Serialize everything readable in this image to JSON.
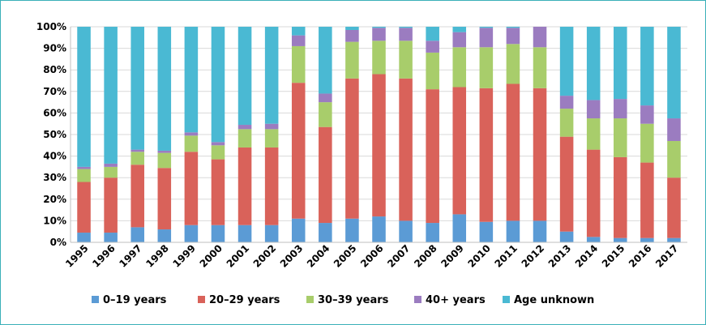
{
  "chart_data": {
    "type": "bar",
    "stacked": true,
    "percent": true,
    "title": "",
    "xlabel": "",
    "ylabel": "",
    "ylim": [
      0,
      100
    ],
    "yticks": [
      "0%",
      "10%",
      "20%",
      "30%",
      "40%",
      "50%",
      "60%",
      "70%",
      "80%",
      "90%",
      "100%"
    ],
    "grid": true,
    "legend_position": "bottom",
    "categories": [
      "1995",
      "1996",
      "1997",
      "1998",
      "1999",
      "2000",
      "2001",
      "2002",
      "2003",
      "2004",
      "2005",
      "2006",
      "2007",
      "2008",
      "2009",
      "2010",
      "2011",
      "2012",
      "2013",
      "2014",
      "2015",
      "2016",
      "2017"
    ],
    "series": [
      {
        "name": "0–19 years",
        "color": "#5b9bd5",
        "values": [
          4.5,
          4.5,
          7,
          6,
          8,
          8,
          8,
          8,
          11,
          9,
          11,
          12,
          10,
          9,
          13,
          9.5,
          10,
          10,
          5,
          2.5,
          2,
          2,
          2
        ]
      },
      {
        "name": "20–29 years",
        "color": "#d9625a",
        "values": [
          23.5,
          25.5,
          29,
          28.5,
          34,
          30.5,
          36,
          36,
          63,
          44.5,
          65,
          66,
          66,
          62,
          59,
          62,
          63.5,
          61.5,
          44,
          40.5,
          37.5,
          35,
          28
        ]
      },
      {
        "name": "30–39 years",
        "color": "#a8cd6b",
        "values": [
          6,
          5,
          6,
          7,
          7.5,
          6.5,
          8.5,
          8.5,
          17,
          11.5,
          17,
          15.5,
          17.5,
          17,
          18.5,
          19,
          18.5,
          19,
          13,
          14.5,
          18,
          18,
          17
        ]
      },
      {
        "name": "40+ years",
        "color": "#9b7cc0",
        "values": [
          1,
          1.5,
          1,
          1,
          1.5,
          1.5,
          2,
          2.5,
          5,
          4,
          5.5,
          6,
          6,
          5.5,
          7,
          9,
          7.5,
          9.5,
          6,
          8.5,
          9,
          8.5,
          10.5
        ]
      },
      {
        "name": "Age unknown",
        "color": "#4ab9d3",
        "values": [
          65,
          63.5,
          57,
          57.5,
          49,
          53.5,
          45.5,
          45,
          4,
          31,
          1.5,
          0.5,
          0.5,
          6.5,
          2.5,
          0.5,
          0.5,
          0,
          32,
          34,
          33.5,
          36.5,
          42.5
        ]
      }
    ]
  }
}
